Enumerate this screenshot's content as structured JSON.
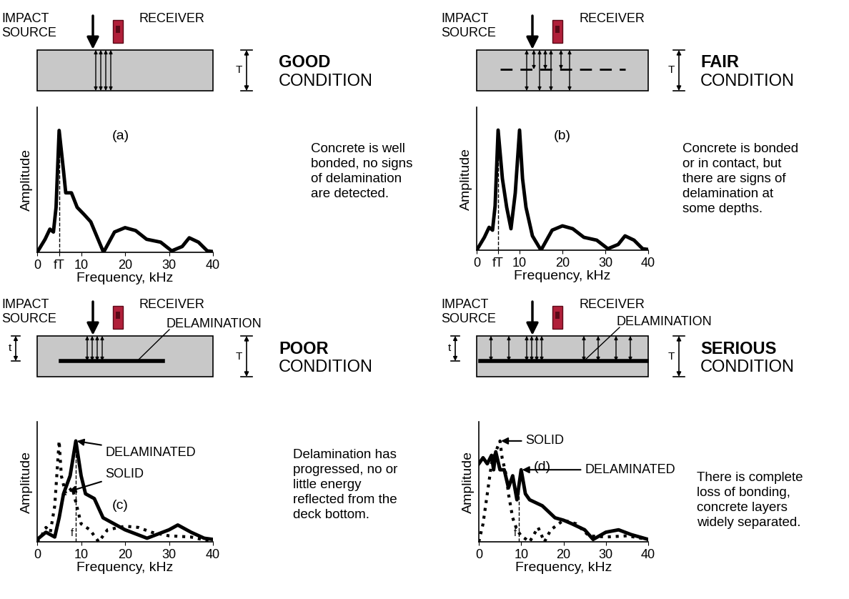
{
  "chart_data": [
    {
      "type": "line",
      "title": "(a)",
      "x_label": "Frequency, kHz",
      "y_label": "Amplitude",
      "xlim": [
        0,
        40
      ],
      "ylim": [
        0,
        1
      ],
      "xticks": [
        0,
        {
          "value": 5,
          "label": "fT"
        },
        10,
        20,
        30,
        40
      ],
      "tick_labels": "x",
      "series": [
        {
          "color": "#000000",
          "line_style": "solid",
          "x": [
            0,
            1.8,
            2.9,
            3.7,
            4.3,
            5,
            6,
            6.5,
            7.8,
            9.1,
            10.7,
            12.2,
            15.1,
            17.6,
            20,
            22.4,
            24.9,
            28.1,
            30.6,
            33,
            34.6,
            36.7,
            38.7,
            40
          ],
          "values": [
            0,
            0.09,
            0.16,
            0.14,
            0.31,
            0.84,
            0.56,
            0.41,
            0.41,
            0.31,
            0.26,
            0.21,
            0,
            0.14,
            0.17,
            0.15,
            0.09,
            0.07,
            0.01,
            0.04,
            0.1,
            0.07,
            0.01,
            0.005
          ]
        }
      ]
    },
    {
      "type": "line",
      "title": "(b)",
      "x_label": "Frequency, kHz",
      "y_label": "Amplitude",
      "xlim": [
        0,
        40
      ],
      "ylim": [
        0,
        1
      ],
      "xticks": [
        0,
        {
          "value": 5,
          "label": "fT"
        },
        10,
        20,
        30,
        40
      ],
      "tick_labels": "x",
      "series": [
        {
          "color": "#000000",
          "line_style": "solid",
          "x": [
            0,
            1.8,
            2.9,
            3.7,
            4.3,
            5,
            6,
            7,
            8,
            9,
            10,
            10.7,
            11.5,
            13,
            15,
            17.6,
            20,
            22.4,
            25,
            28,
            30.6,
            33,
            34.6,
            36.7,
            38.7,
            40
          ],
          "values": [
            0,
            0.09,
            0.16,
            0.14,
            0.31,
            0.84,
            0.5,
            0.3,
            0.15,
            0.4,
            0.84,
            0.5,
            0.3,
            0.1,
            0,
            0.14,
            0.17,
            0.15,
            0.09,
            0.07,
            0.01,
            0.04,
            0.1,
            0.07,
            0.01,
            0.005
          ]
        }
      ]
    },
    {
      "type": "line",
      "title": "(c)",
      "x_label": "Frequency, kHz",
      "y_label": "Amplitude",
      "xlim": [
        0,
        40
      ],
      "ylim": [
        0,
        1
      ],
      "xticks": [
        0,
        10,
        20,
        30,
        40
      ],
      "tick_labels": "x",
      "annotations": [
        {
          "text": "f",
          "x": 8.8
        }
      ],
      "series": [
        {
          "name": "DELAMINATED",
          "color": "#000000",
          "line_style": "solid",
          "x": [
            0,
            2,
            3,
            4,
            5,
            6,
            7.5,
            8.8,
            10,
            11,
            13,
            15,
            20,
            25,
            30,
            32,
            35,
            38,
            40
          ],
          "values": [
            0.02,
            0.08,
            0.06,
            0.04,
            0.2,
            0.4,
            0.55,
            0.84,
            0.55,
            0.4,
            0.36,
            0.2,
            0.1,
            0.03,
            0.1,
            0.14,
            0.08,
            0.03,
            0.02
          ]
        },
        {
          "name": "SOLID",
          "color": "#000000",
          "line_style": "dotted",
          "x": [
            0,
            1,
            2,
            3,
            4,
            5,
            5.5,
            6.5,
            8,
            9,
            10,
            12,
            14,
            16,
            20,
            23,
            26,
            30,
            35,
            40
          ],
          "values": [
            0,
            0.05,
            0.12,
            0.08,
            0.3,
            0.84,
            0.55,
            0.4,
            0.45,
            0.3,
            0.15,
            0.1,
            0,
            0.1,
            0.13,
            0.12,
            0.08,
            0.05,
            0.04,
            0
          ]
        }
      ]
    },
    {
      "type": "line",
      "title": "(d)",
      "x_label": "Frequency, kHz",
      "y_label": "Amplitude",
      "xlim": [
        0,
        40
      ],
      "ylim": [
        0,
        1
      ],
      "xticks": [
        0,
        10,
        20,
        30,
        40
      ],
      "tick_labels": "x",
      "annotations": [
        {
          "text": "f",
          "x": 9.5
        }
      ],
      "series": [
        {
          "name": "DELAMINATED",
          "color": "#000000",
          "line_style": "solid",
          "x": [
            0,
            1,
            2,
            3,
            3.5,
            4,
            5,
            6,
            7,
            8,
            9,
            10,
            11,
            12,
            15,
            18,
            20,
            22,
            25,
            27,
            30,
            33,
            36,
            40
          ],
          "values": [
            0.65,
            0.7,
            0.65,
            0.72,
            0.6,
            0.75,
            0.6,
            0.6,
            0.45,
            0.55,
            0.35,
            0.6,
            0.4,
            0.35,
            0.3,
            0.2,
            0.18,
            0.15,
            0.1,
            0.02,
            0.08,
            0.1,
            0.06,
            0.02
          ]
        },
        {
          "name": "SOLID",
          "color": "#000000",
          "line_style": "dotted",
          "x": [
            0,
            1,
            2,
            3,
            4,
            5,
            5.5,
            6.5,
            7,
            8,
            9,
            10,
            12,
            14,
            15.5,
            17,
            20,
            23,
            26,
            30,
            35,
            40
          ],
          "values": [
            0,
            0.15,
            0.4,
            0.65,
            0.75,
            0.84,
            0.7,
            0.55,
            0.4,
            0.2,
            0.1,
            0.05,
            0,
            0.12,
            0,
            0.1,
            0.18,
            0.15,
            0.05,
            0.04,
            0.05,
            0.02
          ]
        }
      ]
    }
  ],
  "diagrams": [
    {
      "impact_label": "IMPACT\nSOURCE",
      "receiver_label": "RECEIVER",
      "thickness_label": "T",
      "condition": "GOOD",
      "condition_word": "CONDITION",
      "description": "Concrete is well\nbonded, no signs\nof delamination\nare detected."
    },
    {
      "impact_label": "IMPACT\nSOURCE",
      "receiver_label": "RECEIVER",
      "thickness_label": "T",
      "condition": "FAIR",
      "condition_word": "CONDITION",
      "description": "Concrete is bonded\nor in contact, but\nthere are signs of\ndelamination at\nsome depths."
    },
    {
      "impact_label": "IMPACT\nSOURCE",
      "receiver_label": "RECEIVER",
      "thickness_label": "T",
      "depth_label": "t",
      "delamination_label": "DELAMINATION",
      "condition": "POOR",
      "condition_word": "CONDITION",
      "description": "Delamination has\nprogressed, no or\nlittle energy\nreflected from the\ndeck bottom."
    },
    {
      "impact_label": "IMPACT\nSOURCE",
      "receiver_label": "RECEIVER",
      "thickness_label": "T",
      "depth_label": "t",
      "delamination_label": "DELAMINATION",
      "condition": "SERIOUS",
      "condition_word": "CONDITION",
      "description": "There is complete\nloss of bonding,\nconcrete layers\nwidely separated."
    }
  ]
}
